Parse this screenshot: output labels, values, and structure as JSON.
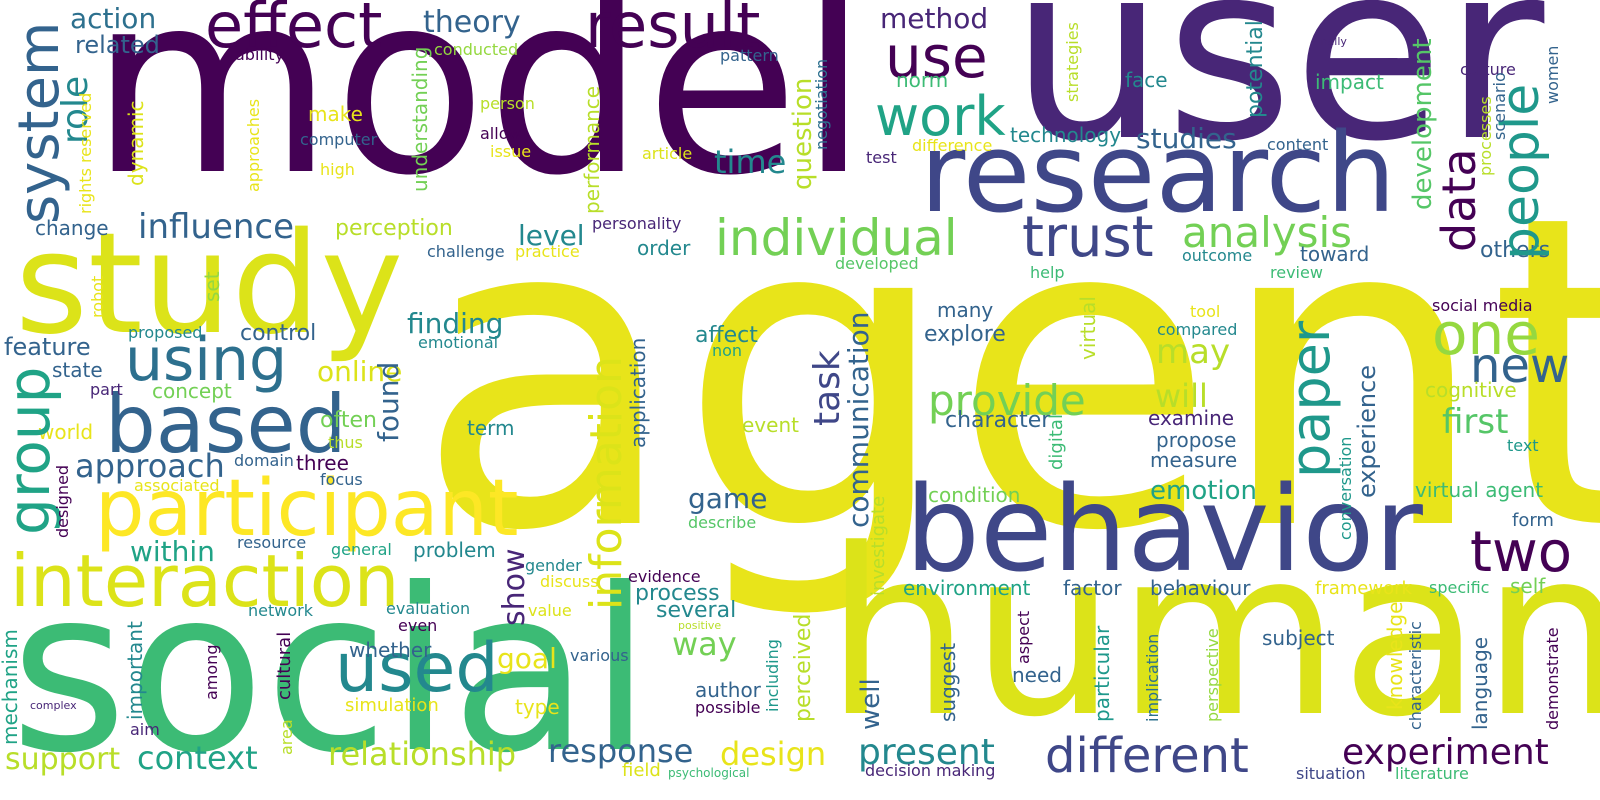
{
  "palette": {
    "p1": "#440154",
    "p2": "#482677",
    "p3": "#3f4788",
    "p4": "#33638d",
    "p5": "#2d708e",
    "p6": "#23888e",
    "p7": "#1f988b",
    "p8": "#20a386",
    "p9": "#3cbb75",
    "p10": "#55c667",
    "p11": "#73d055",
    "p12": "#95d840",
    "p13": "#b8de29",
    "p14": "#dce319",
    "p15": "#e8e41a",
    "p16": "#fde725"
  },
  "words": {
    "agent": "agent",
    "model": "model",
    "user": "user",
    "social": "social",
    "human": "human",
    "study": "study",
    "research": "research",
    "behavior": "behavior",
    "participant": "participant",
    "interaction": "interaction",
    "based": "based",
    "using": "using",
    "used": "used",
    "trust": "trust",
    "individual": "individual",
    "people": "people",
    "result": "result",
    "effect": "effect",
    "use": "use",
    "work": "work",
    "system": "system",
    "information": "information",
    "paper": "paper",
    "different": "different",
    "two": "two",
    "one": "one",
    "new": "new",
    "data": "data",
    "analysis": "analysis",
    "group": "group",
    "influence": "influence",
    "approach": "approach",
    "experiment": "experiment",
    "theory": "theory",
    "action": "action",
    "related": "related",
    "method": "method",
    "role": "role",
    "time": "time",
    "question": "question",
    "studies": "studies",
    "technology": "technology",
    "face": "face",
    "impact": "impact",
    "development": "development",
    "potential": "potential",
    "culture": "culture",
    "scenario": "scenario",
    "women": "women",
    "Finally": "Finally",
    "strategies": "strategies",
    "content": "content",
    "norm": "norm",
    "difference": "difference",
    "test": "test",
    "processes": "processes",
    "challenge": "challenge",
    "practice": "practice",
    "order": "order",
    "personality": "personality",
    "level": "level",
    "change": "change",
    "perception": "perception",
    "developed": "developed",
    "outcome": "outcome",
    "toward": "toward",
    "review": "review",
    "others": "others",
    "help": "help",
    "social_media": "social media",
    "finding": "finding",
    "online": "online",
    "control": "control",
    "feature": "feature",
    "state": "state",
    "proposed": "proposed",
    "concept": "concept",
    "part": "part",
    "world": "world",
    "often": "often",
    "thus": "thus",
    "found": "found",
    "task": "task",
    "communication": "communication",
    "affect": "affect",
    "non": "non",
    "many": "many",
    "explore": "explore",
    "tool": "tool",
    "compared": "compared",
    "may": "may",
    "provide": "provide",
    "character": "character",
    "will": "will",
    "examine": "examine",
    "propose": "propose",
    "measure": "measure",
    "experience": "experience",
    "first": "first",
    "cognitive": "cognitive",
    "text": "text",
    "term": "term",
    "decision": "decision",
    "event": "event",
    "emotional": "emotional",
    "application": "application",
    "game": "game",
    "describe": "describe",
    "domain": "domain",
    "three": "three",
    "focus": "focus",
    "associated": "associated",
    "designed": "designed",
    "resource": "resource",
    "within": "within",
    "general": "general",
    "problem": "problem",
    "show": "show",
    "gender": "gender",
    "discuss": "discuss",
    "evidence": "evidence",
    "process": "process",
    "several": "several",
    "emotion": "emotion",
    "condition": "condition",
    "environment": "environment",
    "factor": "factor",
    "behaviour": "behaviour",
    "virtual_agent": "virtual agent",
    "framework": "framework",
    "specific": "specific",
    "self": "self",
    "form": "form",
    "network": "network",
    "evaluation": "evaluation",
    "value": "value",
    "positive": "positive",
    "even": "even",
    "various": "various",
    "whether": "whether",
    "goal": "goal",
    "way": "way",
    "author": "author",
    "possible": "possible",
    "simulation": "simulation",
    "type": "type",
    "important": "important",
    "among": "among",
    "cultural": "cultural",
    "mechanism": "mechanism",
    "complex": "complex",
    "aim": "aim",
    "area": "area",
    "support": "support",
    "context": "context",
    "relationship": "relationship",
    "response": "response",
    "design": "design",
    "field": "field",
    "psychological": "psychological",
    "present": "present",
    "decision_making": "decision making",
    "subject": "subject",
    "need": "need",
    "suggest": "suggest",
    "aspect": "aspect",
    "particular": "particular",
    "implication": "implication",
    "perspective": "perspective",
    "knowledge": "knowledge",
    "characteristic": "characteristic",
    "language": "language",
    "demonstrate": "demonstrate",
    "situation": "situation",
    "literature": "literature",
    "including": "including",
    "perceived": "perceived",
    "well": "well",
    "investigate": "investigate",
    "digital": "digital",
    "virtual": "virtual",
    "conversation": "conversation",
    "ability": "ability",
    "conducted": "conducted",
    "pattern": "pattern",
    "rights_reserved": "rights reserved",
    "approaches": "approaches",
    "dynamic": "dynamic",
    "make": "make",
    "computer": "computer",
    "high": "high",
    "understanding": "understanding",
    "person": "person",
    "allow": "allow",
    "issue": "issue",
    "article": "article",
    "performance": "performance",
    "negotiation": "negotiation",
    "set": "set",
    "robot": "robot"
  }
}
